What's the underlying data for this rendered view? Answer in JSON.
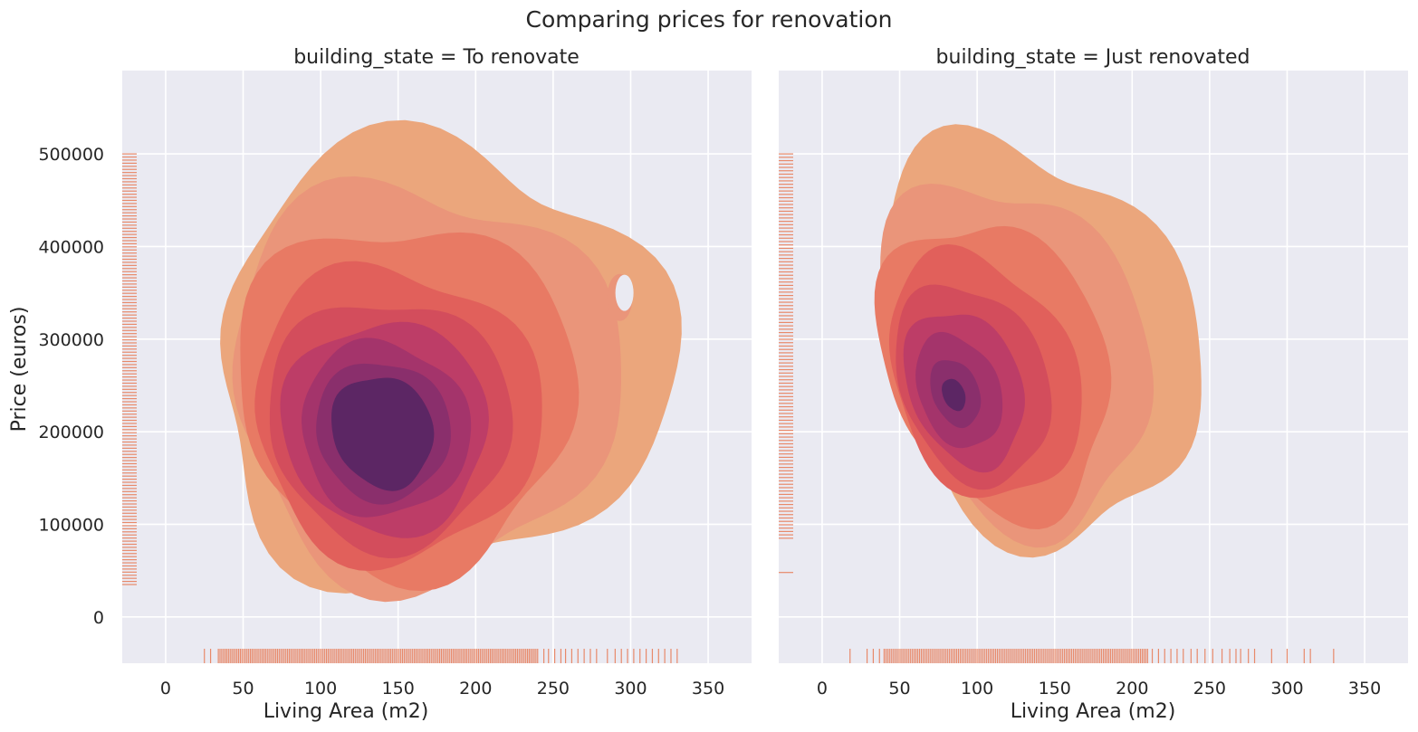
{
  "figure": {
    "title": "Comparing prices for renovation"
  },
  "colors": {
    "background": "#eaeaf2",
    "grid": "#ffffff",
    "rug": "#e8896a",
    "levels": [
      "#eba67c",
      "#ea957a",
      "#e87a64",
      "#e1605b",
      "#d34d5c",
      "#bd3d67",
      "#a4346b",
      "#8a2f6c",
      "#5c2664"
    ]
  },
  "chart_data": [
    {
      "type": "kde",
      "title": "building_state = To renovate",
      "xlabel": "Living Area (m2)",
      "ylabel": "Price (euros)",
      "xlim": [
        -28,
        378
      ],
      "ylim": [
        -50000,
        590000
      ],
      "xticks": [
        0,
        50,
        100,
        150,
        200,
        250,
        300,
        350
      ],
      "yticks": [
        0,
        100000,
        200000,
        300000,
        400000,
        500000
      ],
      "grid": true,
      "density_peak": {
        "x": 140,
        "y": 200000
      },
      "x_range": [
        25,
        330
      ],
      "y_range": [
        35000,
        500000
      ]
    },
    {
      "type": "kde",
      "title": "building_state = Just renovated",
      "xlabel": "Living Area (m2)",
      "ylabel": "",
      "xlim": [
        -28,
        378
      ],
      "ylim": [
        -50000,
        590000
      ],
      "xticks": [
        0,
        50,
        100,
        150,
        200,
        250,
        300,
        350
      ],
      "yticks": [
        0,
        100000,
        200000,
        300000,
        400000,
        500000
      ],
      "grid": true,
      "density_peak": {
        "x": 85,
        "y": 240000
      },
      "x_range": [
        18,
        330
      ],
      "y_range": [
        48000,
        500000
      ]
    }
  ]
}
